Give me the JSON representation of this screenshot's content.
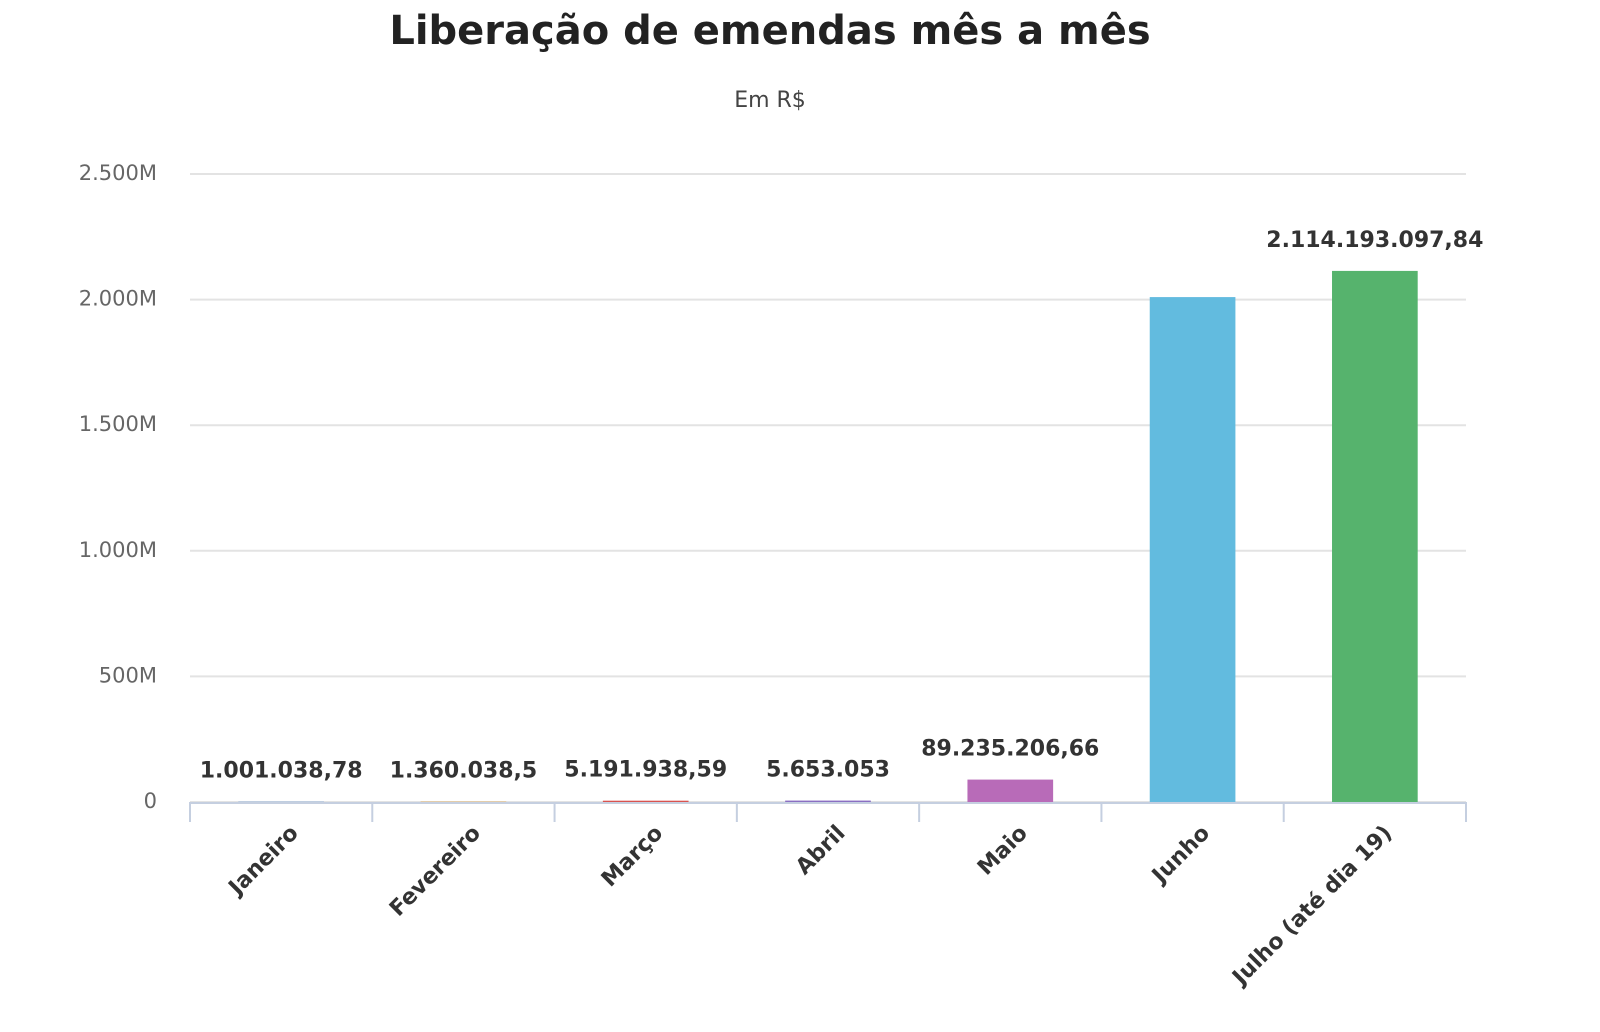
{
  "chart_data": {
    "type": "bar",
    "title": "Liberação de emendas mês a mês",
    "subtitle": "Em R$",
    "categories": [
      "Janeiro",
      "Fevereiro",
      "Março",
      "Abril",
      "Maio",
      "Junho",
      "Julho (até dia 19)"
    ],
    "values": [
      1001038.78,
      1360038.5,
      5191938.59,
      5653053,
      89235206.66,
      2010000000,
      2114193097.84
    ],
    "value_labels": [
      "1.001.038,78",
      "1.360.038,5",
      "5.191.938,59",
      "5.653.053",
      "89.235.206,66",
      null,
      "2.114.193.097,84"
    ],
    "colors": [
      "#5b8fd6",
      "#e8a33d",
      "#d9534f",
      "#8a6fc2",
      "#b86bb8",
      "#62bbdf",
      "#56b36d"
    ],
    "ylim": [
      0,
      2500000000
    ],
    "yticks": [
      0,
      {
        "value": 500000000,
        "label": "500M"
      },
      {
        "value": 1000000000,
        "label": "1.000M"
      },
      {
        "value": 1500000000,
        "label": "1.500M"
      },
      {
        "value": 2000000000,
        "label": "2.000M"
      },
      {
        "value": 2500000000,
        "label": "2.500M"
      }
    ],
    "grid": true
  }
}
